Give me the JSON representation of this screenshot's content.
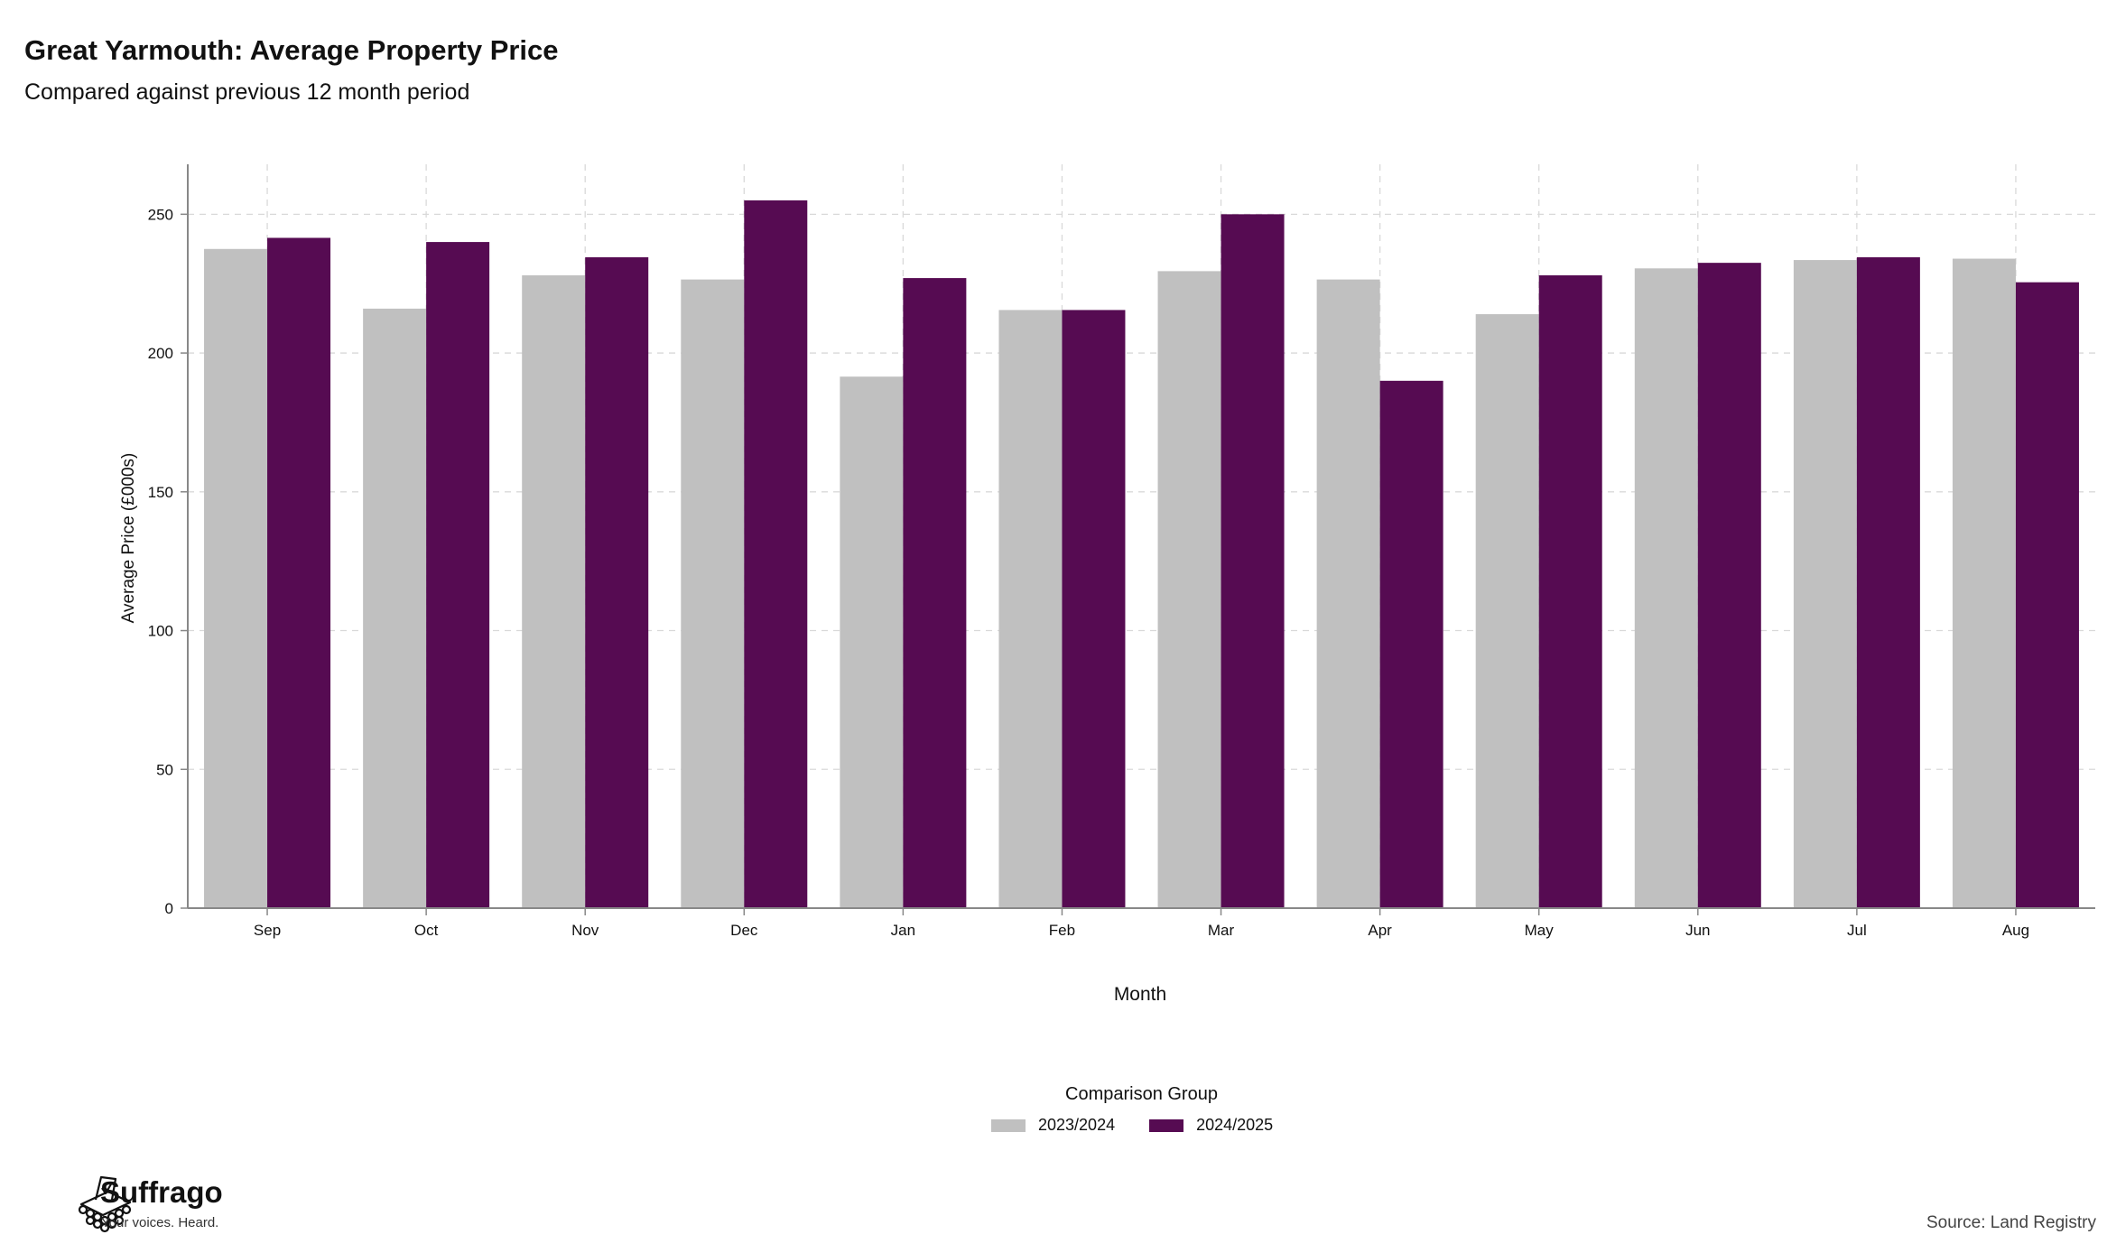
{
  "header": {
    "title": "Great Yarmouth: Average Property Price",
    "subtitle": "Compared against previous 12 month period"
  },
  "chart_data": {
    "type": "bar",
    "categories": [
      "Sep",
      "Oct",
      "Nov",
      "Dec",
      "Jan",
      "Feb",
      "Mar",
      "Apr",
      "May",
      "Jun",
      "Jul",
      "Aug"
    ],
    "series": [
      {
        "name": "2023/2024",
        "color": "#c0c0c0",
        "values": [
          237.5,
          216,
          228,
          226.5,
          191.5,
          215.5,
          229.5,
          226.5,
          214,
          230.5,
          233.5,
          234
        ]
      },
      {
        "name": "2024/2025",
        "color": "#560b52",
        "values": [
          241.5,
          240,
          234.5,
          255,
          227,
          215.5,
          250,
          190,
          228,
          232.5,
          234.5,
          225.5
        ]
      }
    ],
    "xlabel": "Month",
    "ylabel": "Average Price (£000s)",
    "ylim": [
      0,
      268
    ],
    "yticks": [
      0,
      50,
      100,
      150,
      200,
      250
    ],
    "grid": true,
    "legend_title": "Comparison Group",
    "legend_position": "bottom"
  },
  "footer": {
    "brand_name": "Suffrago",
    "brand_tagline": "Your voices. Heard.",
    "source": "Source: Land Registry"
  }
}
